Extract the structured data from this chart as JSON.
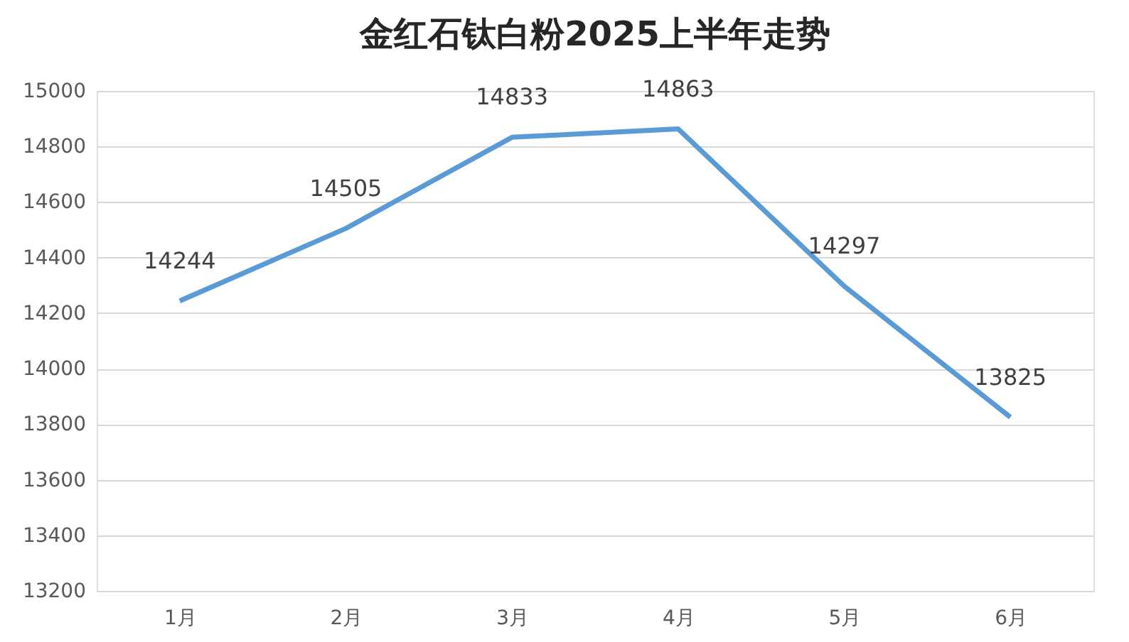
{
  "chart_data": {
    "type": "line",
    "title": "金红石钛白粉2025上半年走势",
    "categories": [
      "1月",
      "2月",
      "3月",
      "4月",
      "5月",
      "6月"
    ],
    "series": [
      {
        "color": "#5b9bd5",
        "values": [
          14244,
          14505,
          14833,
          14863,
          14297,
          13825
        ]
      }
    ],
    "ylim": [
      13200,
      15000
    ],
    "yticks": [
      13200,
      13400,
      13600,
      13800,
      14000,
      14200,
      14400,
      14600,
      14800,
      15000
    ],
    "grid": "y",
    "data_labels": true,
    "marker": "none",
    "line_style": "solid",
    "legend": false
  }
}
